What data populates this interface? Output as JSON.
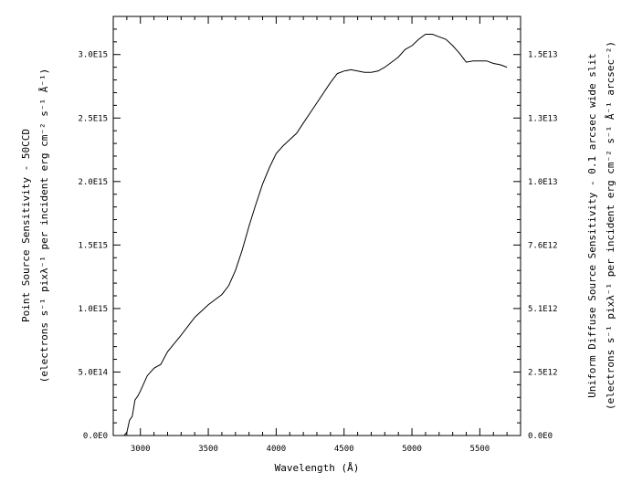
{
  "chart_data": {
    "type": "line",
    "title": "",
    "xlabel": "Wavelength (Å)",
    "ylabel_left": [
      "Point Source Sensitivity - 50CCD",
      "(electrons s⁻¹ pixλ⁻¹ per incident erg cm⁻² s⁻¹ Å⁻¹)"
    ],
    "ylabel_right": [
      "Uniform Diffuse Source Sensitivity - 0.1 arcsec wide slit",
      "(electrons s⁻¹ pixλ⁻¹ per incident erg cm⁻² s⁻¹ Å⁻¹ arcsec⁻²)"
    ],
    "xlim": [
      2800,
      5800
    ],
    "ylim_left": [
      0,
      3300000000000000.0
    ],
    "x_ticks": [
      3000,
      3500,
      4000,
      4500,
      5000,
      5500
    ],
    "x_tick_labels": [
      "3000",
      "3500",
      "4000",
      "4500",
      "5000",
      "5500"
    ],
    "y_left_ticks": [
      0,
      500000000000000.0,
      1000000000000000.0,
      1500000000000000.0,
      2000000000000000.0,
      2500000000000000.0,
      3000000000000000.0
    ],
    "y_left_tick_labels": [
      "0.0E0",
      "5.0E14",
      "1.0E15",
      "1.5E15",
      "2.0E15",
      "2.5E15",
      "3.0E15"
    ],
    "y_right_tick_labels": [
      "0.0E0",
      "2.5E12",
      "5.1E12",
      "7.6E12",
      "1.0E13",
      "1.3E13",
      "1.5E13"
    ],
    "grid": false,
    "series": [
      {
        "x": [
          2880,
          2900,
          2920,
          2940,
          2960,
          2980,
          3000,
          3050,
          3100,
          3150,
          3200,
          3300,
          3400,
          3500,
          3600,
          3650,
          3700,
          3750,
          3800,
          3850,
          3900,
          3950,
          4000,
          4050,
          4100,
          4150,
          4200,
          4300,
          4400,
          4450,
          4500,
          4550,
          4600,
          4650,
          4700,
          4750,
          4800,
          4850,
          4900,
          4950,
          5000,
          5050,
          5100,
          5150,
          5200,
          5250,
          5300,
          5350,
          5400,
          5450,
          5500,
          5550,
          5600,
          5650,
          5700
        ],
        "y": [
          0,
          25000000000000.0,
          120000000000000.0,
          150000000000000.0,
          280000000000000.0,
          310000000000000.0,
          350000000000000.0,
          470000000000000.0,
          530000000000000.0,
          560000000000000.0,
          660000000000000.0,
          790000000000000.0,
          930000000000000.0,
          1030000000000000.0,
          1110000000000000.0,
          1180000000000000.0,
          1300000000000000.0,
          1460000000000000.0,
          1650000000000000.0,
          1820000000000000.0,
          1980000000000000.0,
          2110000000000000.0,
          2220000000000000.0,
          2280000000000000.0,
          2330000000000000.0,
          2380000000000000.0,
          2460000000000000.0,
          2620000000000000.0,
          2780000000000000.0,
          2850000000000000.0,
          2870000000000000.0,
          2880000000000000.0,
          2870000000000000.0,
          2860000000000000.0,
          2860000000000000.0,
          2870000000000000.0,
          2900000000000000.0,
          2940000000000000.0,
          2980000000000000.0,
          3040000000000000.0,
          3070000000000000.0,
          3120000000000000.0,
          3160000000000000.0,
          3160000000000000.0,
          3140000000000000.0,
          3120000000000000.0,
          3070000000000000.0,
          3010000000000000.0,
          2940000000000000.0,
          2950000000000000.0,
          2950000000000000.0,
          2950000000000000.0,
          2930000000000000.0,
          2920000000000000.0,
          2900000000000000.0
        ]
      }
    ]
  }
}
